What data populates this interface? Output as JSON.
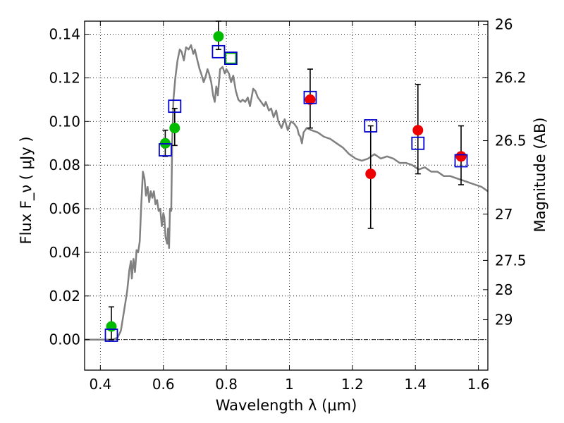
{
  "chart_data": {
    "type": "scatter",
    "title": "",
    "xlabel": "Wavelength  λ (μm)",
    "ylabel": "Flux  F_ν  ( μJy )",
    "y2label": "Magnitude (AB)",
    "xlim": [
      0.35,
      1.63
    ],
    "ylim": [
      -0.014,
      0.146
    ],
    "grid": true,
    "legend": "none",
    "x_ticks": [
      0.4,
      0.6,
      0.8,
      1.0,
      1.2,
      1.4,
      1.6
    ],
    "x_tick_labels": [
      "0.4",
      "0.6",
      "0.8",
      "1",
      "1.2",
      "1.4",
      "1.6"
    ],
    "y_ticks": [
      0.0,
      0.02,
      0.04,
      0.06,
      0.08,
      0.1,
      0.12,
      0.14
    ],
    "y_tick_labels": [
      "0.00",
      "0.02",
      "0.04",
      "0.06",
      "0.08",
      "0.10",
      "0.12",
      "0.14"
    ],
    "magnitude_ticks": [
      {
        "label": "26",
        "flux": 0.1445
      },
      {
        "label": "26.2",
        "flux": 0.1202
      },
      {
        "label": "26.5",
        "flux": 0.0912
      },
      {
        "label": "27",
        "flux": 0.0575
      },
      {
        "label": "27.5",
        "flux": 0.0363
      },
      {
        "label": "28",
        "flux": 0.0229
      },
      {
        "label": "29",
        "flux": 0.0091
      }
    ],
    "colors": {
      "model": "#808080",
      "green_points": "#00bb00",
      "red_points": "#ee0000",
      "model_squares": "#0000cc",
      "green_square": "#00aa00",
      "errorbars": "#000000",
      "grid": "#000000"
    },
    "series": [
      {
        "kind": "line",
        "points": [
          [
            0.35,
            0.0
          ],
          [
            0.44,
            0.0
          ],
          [
            0.455,
            0.001
          ],
          [
            0.465,
            0.004
          ],
          [
            0.475,
            0.013
          ],
          [
            0.485,
            0.022
          ],
          [
            0.492,
            0.032
          ],
          [
            0.497,
            0.036
          ],
          [
            0.5,
            0.028
          ],
          [
            0.505,
            0.037
          ],
          [
            0.51,
            0.031
          ],
          [
            0.515,
            0.041
          ],
          [
            0.52,
            0.04
          ],
          [
            0.525,
            0.045
          ],
          [
            0.53,
            0.062
          ],
          [
            0.535,
            0.077
          ],
          [
            0.54,
            0.074
          ],
          [
            0.545,
            0.066
          ],
          [
            0.55,
            0.07
          ],
          [
            0.555,
            0.063
          ],
          [
            0.56,
            0.068
          ],
          [
            0.565,
            0.065
          ],
          [
            0.57,
            0.068
          ],
          [
            0.575,
            0.062
          ],
          [
            0.58,
            0.064
          ],
          [
            0.585,
            0.059
          ],
          [
            0.59,
            0.06
          ],
          [
            0.595,
            0.052
          ],
          [
            0.6,
            0.058
          ],
          [
            0.603,
            0.056
          ],
          [
            0.607,
            0.047
          ],
          [
            0.612,
            0.044
          ],
          [
            0.615,
            0.051
          ],
          [
            0.618,
            0.042
          ],
          [
            0.621,
            0.06
          ],
          [
            0.625,
            0.059
          ],
          [
            0.628,
            0.09
          ],
          [
            0.632,
            0.11
          ],
          [
            0.638,
            0.12
          ],
          [
            0.645,
            0.128
          ],
          [
            0.652,
            0.133
          ],
          [
            0.658,
            0.132
          ],
          [
            0.665,
            0.128
          ],
          [
            0.672,
            0.134
          ],
          [
            0.68,
            0.133
          ],
          [
            0.688,
            0.135
          ],
          [
            0.695,
            0.131
          ],
          [
            0.7,
            0.133
          ],
          [
            0.708,
            0.128
          ],
          [
            0.715,
            0.124
          ],
          [
            0.72,
            0.122
          ],
          [
            0.728,
            0.118
          ],
          [
            0.735,
            0.121
          ],
          [
            0.74,
            0.124
          ],
          [
            0.745,
            0.122
          ],
          [
            0.752,
            0.118
          ],
          [
            0.758,
            0.112
          ],
          [
            0.763,
            0.109
          ],
          [
            0.768,
            0.116
          ],
          [
            0.773,
            0.112
          ],
          [
            0.78,
            0.124
          ],
          [
            0.788,
            0.125
          ],
          [
            0.795,
            0.122
          ],
          [
            0.8,
            0.124
          ],
          [
            0.808,
            0.122
          ],
          [
            0.815,
            0.118
          ],
          [
            0.822,
            0.121
          ],
          [
            0.83,
            0.114
          ],
          [
            0.838,
            0.11
          ],
          [
            0.845,
            0.109
          ],
          [
            0.852,
            0.11
          ],
          [
            0.86,
            0.109
          ],
          [
            0.868,
            0.111
          ],
          [
            0.875,
            0.107
          ],
          [
            0.885,
            0.115
          ],
          [
            0.892,
            0.114
          ],
          [
            0.9,
            0.111
          ],
          [
            0.91,
            0.109
          ],
          [
            0.92,
            0.107
          ],
          [
            0.925,
            0.109
          ],
          [
            0.935,
            0.105
          ],
          [
            0.942,
            0.106
          ],
          [
            0.95,
            0.102
          ],
          [
            0.958,
            0.105
          ],
          [
            0.965,
            0.1
          ],
          [
            0.975,
            0.097
          ],
          [
            0.985,
            0.101
          ],
          [
            0.995,
            0.096
          ],
          [
            1.005,
            0.1
          ],
          [
            1.015,
            0.099
          ],
          [
            1.025,
            0.097
          ],
          [
            1.03,
            0.094
          ],
          [
            1.035,
            0.093
          ],
          [
            1.04,
            0.09
          ],
          [
            1.045,
            0.095
          ],
          [
            1.055,
            0.097
          ],
          [
            1.07,
            0.096
          ],
          [
            1.09,
            0.095
          ],
          [
            1.11,
            0.093
          ],
          [
            1.13,
            0.092
          ],
          [
            1.15,
            0.09
          ],
          [
            1.17,
            0.088
          ],
          [
            1.19,
            0.085
          ],
          [
            1.21,
            0.083
          ],
          [
            1.23,
            0.082
          ],
          [
            1.25,
            0.083
          ],
          [
            1.27,
            0.085
          ],
          [
            1.29,
            0.083
          ],
          [
            1.31,
            0.084
          ],
          [
            1.33,
            0.083
          ],
          [
            1.35,
            0.081
          ],
          [
            1.37,
            0.081
          ],
          [
            1.39,
            0.08
          ],
          [
            1.41,
            0.078
          ],
          [
            1.43,
            0.079
          ],
          [
            1.45,
            0.077
          ],
          [
            1.47,
            0.077
          ],
          [
            1.49,
            0.075
          ],
          [
            1.51,
            0.075
          ],
          [
            1.53,
            0.074
          ],
          [
            1.55,
            0.073
          ],
          [
            1.57,
            0.072
          ],
          [
            1.59,
            0.071
          ],
          [
            1.61,
            0.07
          ],
          [
            1.63,
            0.068
          ]
        ]
      },
      {
        "kind": "observed-green",
        "points": [
          {
            "x": 0.435,
            "y": 0.006,
            "yerr_low": 0.0,
            "yerr_high": 0.015
          },
          {
            "x": 0.606,
            "y": 0.09,
            "yerr_low": 0.084,
            "yerr_high": 0.096
          },
          {
            "x": 0.636,
            "y": 0.097,
            "yerr_low": 0.089,
            "yerr_high": 0.106
          },
          {
            "x": 0.775,
            "y": 0.139,
            "yerr_low": 0.133,
            "yerr_high": 0.146
          }
        ]
      },
      {
        "kind": "observed-red",
        "points": [
          {
            "x": 1.066,
            "y": 0.11,
            "yerr_low": 0.097,
            "yerr_high": 0.124
          },
          {
            "x": 1.258,
            "y": 0.076,
            "yerr_low": 0.051,
            "yerr_high": 0.098
          },
          {
            "x": 1.408,
            "y": 0.096,
            "yerr_low": 0.076,
            "yerr_high": 0.117
          },
          {
            "x": 1.545,
            "y": 0.084,
            "yerr_low": 0.071,
            "yerr_high": 0.098
          }
        ]
      },
      {
        "kind": "model-squares",
        "points": [
          {
            "x": 0.435,
            "y": 0.002
          },
          {
            "x": 0.606,
            "y": 0.087
          },
          {
            "x": 0.636,
            "y": 0.107
          },
          {
            "x": 0.775,
            "y": 0.132
          },
          {
            "x": 0.814,
            "y": 0.129
          },
          {
            "x": 1.066,
            "y": 0.111
          },
          {
            "x": 1.258,
            "y": 0.098
          },
          {
            "x": 1.408,
            "y": 0.09
          },
          {
            "x": 1.545,
            "y": 0.082
          }
        ]
      }
    ]
  }
}
